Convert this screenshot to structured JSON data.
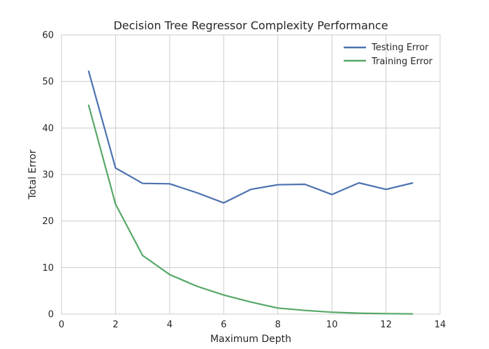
{
  "chart_data": {
    "type": "line",
    "title": "Decision Tree Regressor Complexity Performance",
    "xlabel": "Maximum Depth",
    "ylabel": "Total Error",
    "xlim": [
      0,
      14
    ],
    "ylim": [
      0,
      60
    ],
    "xticks": [
      0,
      2,
      4,
      6,
      8,
      10,
      12,
      14
    ],
    "yticks": [
      0,
      10,
      20,
      30,
      40,
      50,
      60
    ],
    "grid": true,
    "legend_position": "top-right",
    "series": [
      {
        "name": "Testing Error",
        "color": "#4c72b0",
        "x": [
          1,
          2,
          3,
          4,
          5,
          6,
          7,
          8,
          9,
          10,
          11,
          12,
          13
        ],
        "y": [
          52.3,
          31.4,
          28.1,
          28.0,
          26.1,
          23.9,
          26.8,
          27.8,
          27.9,
          25.7,
          28.2,
          26.8,
          28.2
        ]
      },
      {
        "name": "Training Error",
        "color": "#55a868",
        "x": [
          1,
          2,
          3,
          4,
          5,
          6,
          7,
          8,
          9,
          10,
          11,
          12,
          13
        ],
        "y": [
          45.0,
          23.6,
          12.6,
          8.5,
          6.0,
          4.1,
          2.6,
          1.3,
          0.8,
          0.4,
          0.2,
          0.1,
          0.05
        ]
      }
    ]
  }
}
